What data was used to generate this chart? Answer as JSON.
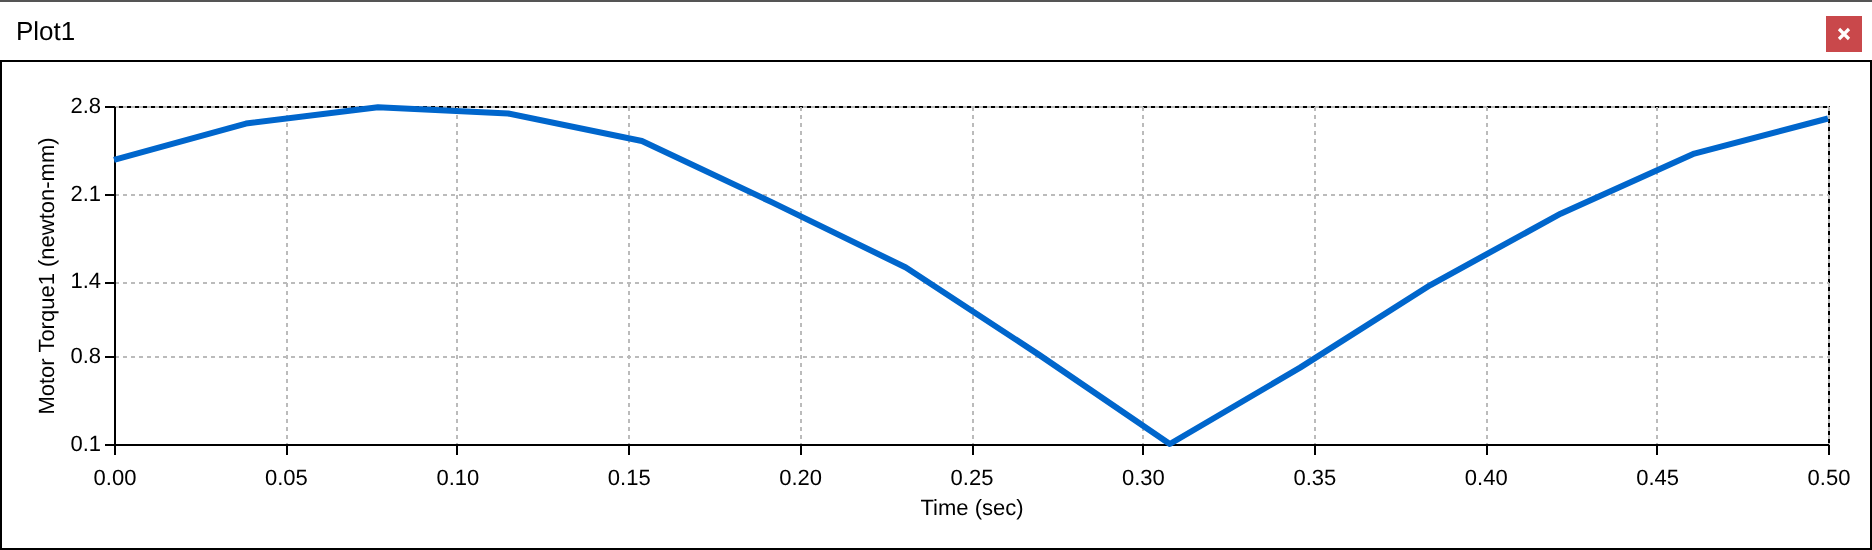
{
  "chart_data": {
    "type": "line",
    "title": "Plot1",
    "xlabel": "Time (sec)",
    "ylabel": "Motor Torque1 (newton-mm)",
    "x": [
      0,
      0.0385,
      0.077,
      0.115,
      0.154,
      0.192,
      0.231,
      0.27,
      0.308,
      0.346,
      0.384,
      0.422,
      0.461,
      0.5
    ],
    "series": [
      {
        "color": "#0066cc",
        "values": [
          2.37,
          2.66,
          2.79,
          2.74,
          2.52,
          2.03,
          1.51,
          0.81,
          0.1,
          0.71,
          1.37,
          1.94,
          2.42,
          2.7
        ]
      }
    ],
    "xlim": [
      0,
      0.5
    ],
    "ylim": [
      0.1,
      2.8
    ],
    "xticks": [
      {
        "value": 0,
        "label": "0.00"
      },
      {
        "value": 0.05,
        "label": "0.05"
      },
      {
        "value": 0.1,
        "label": "0.10"
      },
      {
        "value": 0.15,
        "label": "0.15"
      },
      {
        "value": 0.2,
        "label": "0.20"
      },
      {
        "value": 0.25,
        "label": "0.25"
      },
      {
        "value": 0.3,
        "label": "0.30"
      },
      {
        "value": 0.35,
        "label": "0.35"
      },
      {
        "value": 0.4,
        "label": "0.40"
      },
      {
        "value": 0.45,
        "label": "0.45"
      },
      {
        "value": 0.5,
        "label": "0.50"
      }
    ],
    "yticks": [
      0.1,
      0.8,
      1.4,
      2.1,
      2.8
    ],
    "grid": true,
    "legend": false,
    "marker": "none",
    "line_style": "solid"
  }
}
